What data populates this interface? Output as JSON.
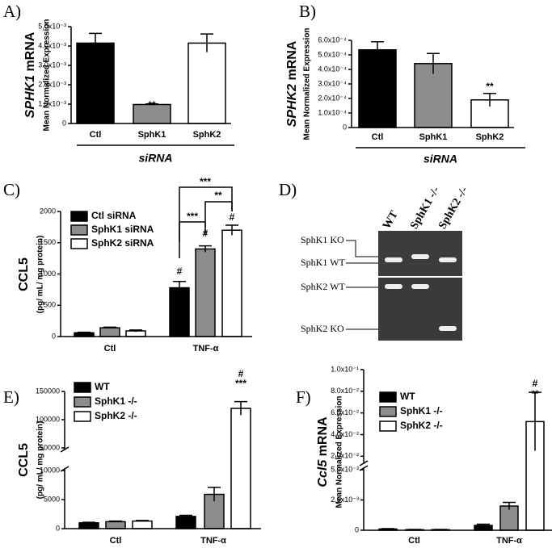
{
  "chart_data": [
    {
      "type": "bar",
      "panel_label": "A)",
      "y_label_italic": "SPHK1",
      "y_label": "mRNA",
      "y_sublabel": "Mean Normalized Expression",
      "categories": [
        "Ctl",
        "SphK1",
        "SphK2"
      ],
      "x_label": "siRNA",
      "values": [
        0.00415,
        0.00098,
        0.00415
      ],
      "errors": [
        0.0005,
        3e-05,
        0.00047
      ],
      "colors": [
        "#000000",
        "#8c8c8c",
        "#ffffff"
      ],
      "ylim": [
        0,
        0.005
      ],
      "yticks": [
        0,
        {
          "value": 0.001,
          "label": "1.0x10⁻³"
        },
        {
          "value": 0.002,
          "label": "2.0x10⁻³"
        },
        {
          "value": 0.003,
          "label": "3.0x10⁻³"
        },
        {
          "value": 0.004,
          "label": "4.0x10⁻³"
        },
        {
          "value": 0.005,
          "label": "5.0x10⁻³"
        }
      ],
      "annotations": [
        "**"
      ]
    },
    {
      "type": "bar",
      "panel_label": "B)",
      "y_label_italic": "SPHK2",
      "y_label": "mRNA",
      "y_sublabel": "Mean Normalized Expression",
      "categories": [
        "Ctl",
        "SphK1",
        "SphK2"
      ],
      "x_label": "siRNA",
      "values": [
        0.000535,
        0.00044,
        0.00019
      ],
      "errors": [
        5.5e-05,
        7e-05,
        4.5e-05
      ],
      "colors": [
        "#000000",
        "#8c8c8c",
        "#ffffff"
      ],
      "ylim": [
        0,
        0.0006
      ],
      "yticks": [
        0,
        {
          "value": 0.0001,
          "label": "1.0x10⁻⁴"
        },
        {
          "value": 0.0002,
          "label": "2.0x10⁻⁴"
        },
        {
          "value": 0.0003,
          "label": "3.0x10⁻⁴"
        },
        {
          "value": 0.0004,
          "label": "4.0x10⁻⁴"
        },
        {
          "value": 0.0005,
          "label": "5.0x10⁻⁴"
        },
        {
          "value": 0.0006,
          "label": "6.0x10⁻⁴"
        }
      ],
      "annotations": [
        "**"
      ]
    },
    {
      "type": "grouped_bar",
      "panel_label": "C)",
      "y_label": "CCL5",
      "y_sublabel": "(pg/ mL/ mg protein)",
      "categories": [
        "Ctl",
        "TNF-α"
      ],
      "series": [
        {
          "name": "Ctl siRNA",
          "color": "#000000",
          "values": [
            60,
            780
          ],
          "errors": [
            10,
            100
          ]
        },
        {
          "name": "SphK1 siRNA",
          "color": "#8c8c8c",
          "values": [
            140,
            1400
          ],
          "errors": [
            10,
            50
          ]
        },
        {
          "name": "SphK2 siRNA",
          "color": "#ffffff",
          "values": [
            90,
            1700
          ],
          "errors": [
            15,
            80
          ]
        }
      ],
      "ylim": [
        0,
        2000
      ],
      "yticks": [
        0,
        500,
        1000,
        1500,
        2000
      ],
      "annotations": [
        "#",
        "#",
        "#",
        "***",
        "***",
        "**"
      ]
    },
    {
      "type": "grouped_bar",
      "panel_label": "E)",
      "y_label": "CCL5",
      "y_sublabel": "(pg/ mL/ mg protein)",
      "categories": [
        "Ctl",
        "TNF-α"
      ],
      "series": [
        {
          "name": "WT",
          "color": "#000000",
          "values": [
            1000,
            2100
          ],
          "errors": [
            100,
            200
          ]
        },
        {
          "name": "SphK1 -/-",
          "color": "#8c8c8c",
          "values": [
            1200,
            5900
          ],
          "errors": [
            100,
            1200
          ]
        },
        {
          "name": "SphK2 -/-",
          "color": "#ffffff",
          "values": [
            1300,
            120000
          ],
          "errors": [
            100,
            12000
          ]
        }
      ],
      "ylim": [
        0,
        150000
      ],
      "axis_break": [
        10000,
        50000
      ],
      "yticks": [
        0,
        5000,
        10000,
        50000,
        100000,
        150000
      ],
      "annotations": [
        "#",
        "***"
      ]
    },
    {
      "type": "grouped_bar",
      "panel_label": "F)",
      "y_label_italic": "Ccl5",
      "y_label": "mRNA",
      "y_sublabel": "Mean Normalized Expression",
      "categories": [
        "Ctl",
        "TNF-α"
      ],
      "series": [
        {
          "name": "WT",
          "color": "#000000",
          "values": [
            0.0001,
            0.0004
          ],
          "errors": [
            3e-05,
            0.0001
          ]
        },
        {
          "name": "SphK1 -/-",
          "color": "#8c8c8c",
          "values": [
            5e-05,
            0.002
          ],
          "errors": [
            2e-05,
            0.0003
          ]
        },
        {
          "name": "SphK2 -/-",
          "color": "#ffffff",
          "values": [
            5e-05,
            0.052
          ],
          "errors": [
            2e-05,
            0.027
          ]
        }
      ],
      "ylim": [
        0,
        0.1
      ],
      "axis_break": [
        0.005,
        0.015
      ],
      "yticks": [
        0,
        {
          "value": 0.0025,
          "label": "2.5x10⁻³"
        },
        {
          "value": 0.005,
          "label": "5.0x10⁻³"
        },
        {
          "value": 0.02,
          "label": "2.0x10⁻²"
        },
        {
          "value": 0.04,
          "label": "4.0x10⁻²"
        },
        {
          "value": 0.06,
          "label": "6.0x10⁻²"
        },
        {
          "value": 0.08,
          "label": "8.0x10⁻²"
        },
        {
          "value": 0.1,
          "label": "1.0x10⁻¹"
        }
      ],
      "annotations": [
        "#",
        "**"
      ]
    }
  ],
  "gel": {
    "panel_label": "D)",
    "lanes": [
      "WT",
      "SphK1 -/-",
      "SphK2 -/-"
    ],
    "bands": [
      "SphK1 KO",
      "SphK1 WT",
      "SphK2 WT",
      "SphK2 KO"
    ]
  }
}
